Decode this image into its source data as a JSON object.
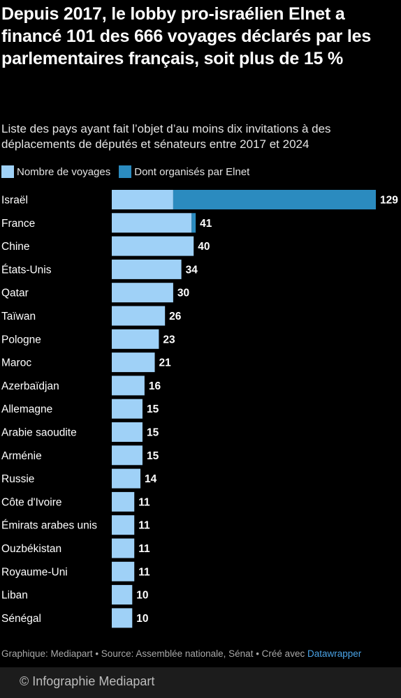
{
  "colors": {
    "total": "#9fd1f7",
    "elnet": "#2b8bbf",
    "background": "#000000",
    "text": "#ffffff"
  },
  "header": {
    "title": "Depuis 2017, le lobby pro-israélien Elnet a financé 101 des 666 voyages déclarés par les parlementaires français, soit plus de 15 %",
    "subtitle": "Liste des pays ayant fait l’objet d’au moins dix invitations à des déplacements de députés et sénateurs entre 2017 et 2024"
  },
  "footer": {
    "source": "Graphique: Mediapart • Source: Assemblée nationale, Sénat • Créé avec ",
    "tool": "Datawrapper",
    "credit": "© Infographie Mediapart"
  },
  "chart_data": {
    "type": "bar",
    "orientation": "horizontal",
    "title": "Depuis 2017, le lobby pro-israélien Elnet a financé 101 des 666 voyages déclarés par les parlementaires français, soit plus de 15 %",
    "subtitle": "Liste des pays ayant fait l’objet d’au moins dix invitations à des déplacements de députés et sénateurs entre 2017 et 2024",
    "legend": "top-left",
    "grid": false,
    "xlim": [
      0,
      129
    ],
    "categories": [
      "Israël",
      "France",
      "Chine",
      "États-Unis",
      "Qatar",
      "Taïwan",
      "Pologne",
      "Maroc",
      "Azerbaïdjan",
      "Allemagne",
      "Arabie saoudite",
      "Arménie",
      "Russie",
      "Côte d'Ivoire",
      "Émirats arabes unis",
      "Ouzbékistan",
      "Royaume-Uni",
      "Liban",
      "Sénégal"
    ],
    "series": [
      {
        "name": "Nombre de voyages",
        "values": [
          129,
          41,
          40,
          34,
          30,
          26,
          23,
          21,
          16,
          15,
          15,
          15,
          14,
          11,
          11,
          11,
          11,
          10,
          10
        ]
      },
      {
        "name": "Dont organisés par Elnet",
        "values": [
          99,
          2,
          0,
          0,
          0,
          0,
          0,
          0,
          0,
          0,
          0,
          0,
          0,
          0,
          0,
          0,
          0,
          0,
          0
        ]
      }
    ]
  }
}
